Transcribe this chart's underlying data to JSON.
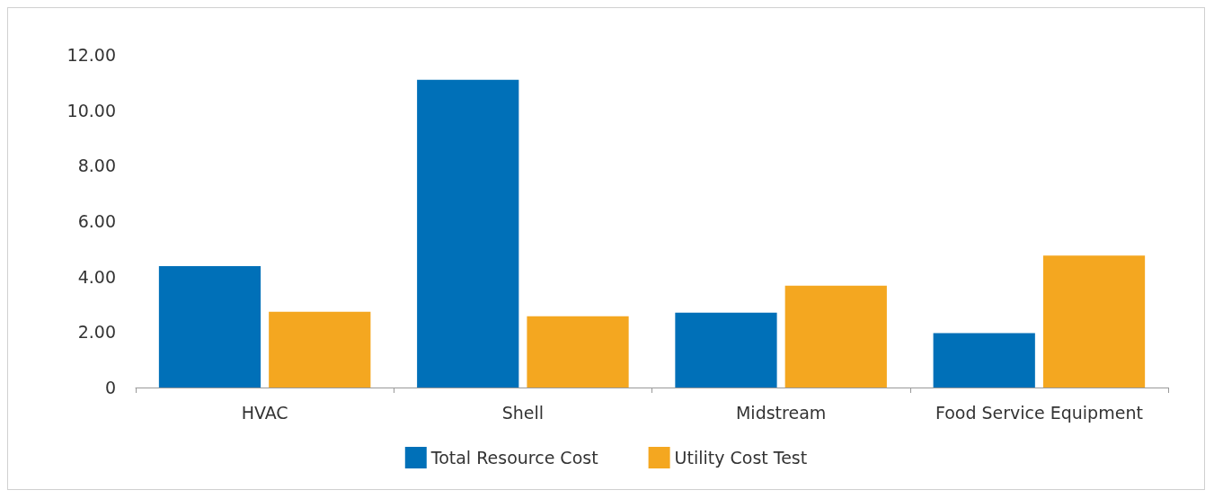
{
  "chart_data": {
    "type": "bar",
    "categories": [
      "HVAC",
      "Shell",
      "Midstream",
      "Food Service Equipment"
    ],
    "series": [
      {
        "name": "Total Resource Cost",
        "color": "#0070b8",
        "values": [
          4.38,
          11.1,
          2.7,
          1.96
        ]
      },
      {
        "name": "Utility Cost Test",
        "color": "#f4a720",
        "values": [
          2.73,
          2.57,
          3.67,
          4.76
        ]
      }
    ],
    "ylim": [
      0,
      12
    ],
    "yticks": [
      0,
      {
        "value": 2,
        "label": "2.00"
      },
      {
        "value": 4,
        "label": "4.00"
      },
      {
        "value": 6,
        "label": "6.00"
      },
      {
        "value": 8,
        "label": "8.00"
      },
      {
        "value": 10,
        "label": "10.00"
      },
      {
        "value": 12,
        "label": "12.00"
      }
    ],
    "grid": false,
    "legend": "bottom"
  }
}
